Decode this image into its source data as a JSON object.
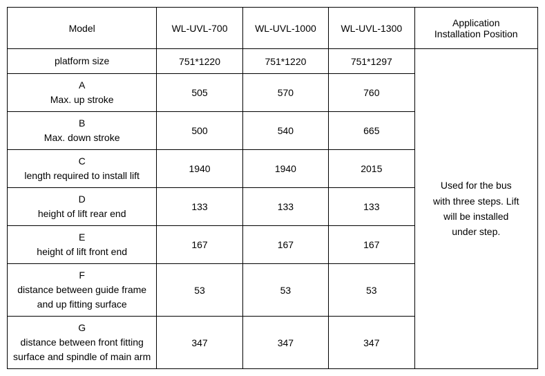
{
  "table": {
    "header": {
      "model_label": "Model",
      "cols": [
        "WL-UVL-700",
        "WL-UVL-1000",
        "WL-UVL-1300"
      ],
      "app_line1": "Application",
      "app_line2": "Installation Position"
    },
    "platform_row": {
      "label": "platform size",
      "vals": [
        "751*1220",
        "751*1220",
        "751*1297"
      ]
    },
    "rows": [
      {
        "code": "A",
        "desc": "Max. up stroke",
        "vals": [
          "505",
          "570",
          "760"
        ]
      },
      {
        "code": "B",
        "desc": "Max. down stroke",
        "vals": [
          "500",
          "540",
          "665"
        ]
      },
      {
        "code": "C",
        "desc": "length required to install lift",
        "vals": [
          "1940",
          "1940",
          "2015"
        ]
      },
      {
        "code": "D",
        "desc": "height of lift rear end",
        "vals": [
          "133",
          "133",
          "133"
        ]
      },
      {
        "code": "E",
        "desc": "height of lift front end",
        "vals": [
          "167",
          "167",
          "167"
        ]
      },
      {
        "code": "F",
        "desc": "distance between guide frame and up fitting surface",
        "vals": [
          "53",
          "53",
          "53"
        ]
      },
      {
        "code": "G",
        "desc": "distance between front fitting surface and spindle of main arm",
        "vals": [
          "347",
          "347",
          "347"
        ]
      }
    ],
    "app_text": {
      "l1": "Used for the bus",
      "l2": "with three steps. Lift",
      "l3": "will be installed",
      "l4": "under step."
    },
    "style": {
      "border_color": "#000000",
      "bg_color": "#ffffff",
      "text_color": "#000000",
      "font_size_pt": 11,
      "col_model_width": 200,
      "col_val_width": 115,
      "col_app_width": 165
    }
  }
}
